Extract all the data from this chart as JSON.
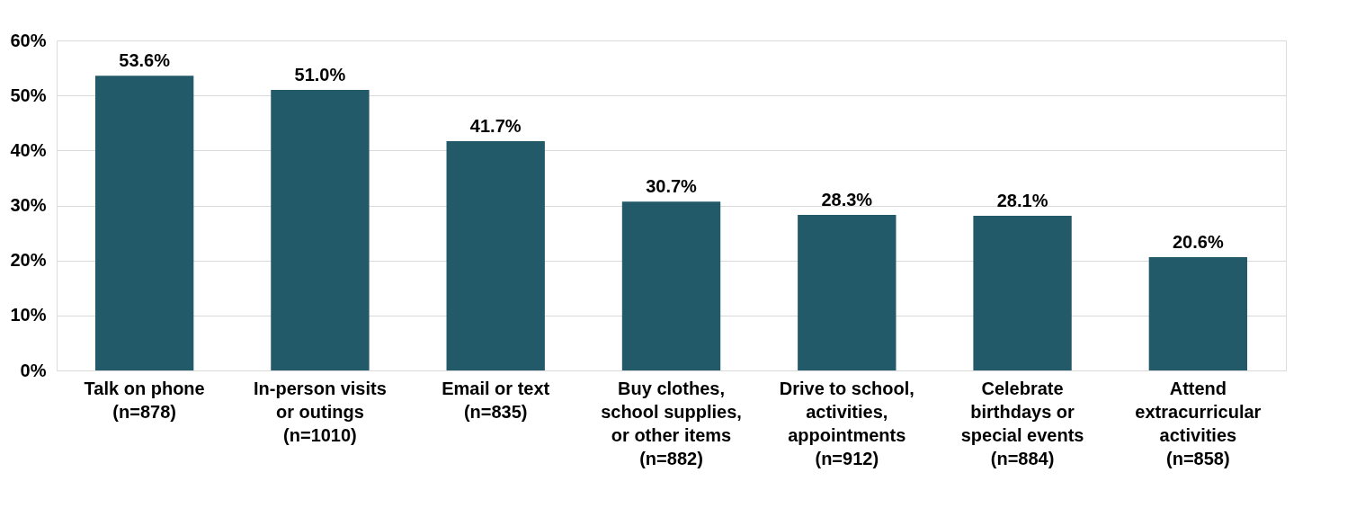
{
  "chart_data": {
    "type": "bar",
    "categories": [
      "Talk on phone\n(n=878)",
      "In-person visits\nor outings\n(n=1010)",
      "Email or text\n(n=835)",
      "Buy clothes,\nschool supplies,\nor other items\n(n=882)",
      "Drive to school,\nactivities,\nappointments\n(n=912)",
      "Celebrate\nbirthdays or\nspecial events\n(n=884)",
      "Attend\nextracurricular\nactivities\n(n=858)"
    ],
    "values": [
      53.6,
      51.0,
      41.7,
      30.7,
      28.3,
      28.1,
      20.6
    ],
    "value_labels": [
      "53.6%",
      "51.0%",
      "41.7%",
      "30.7%",
      "28.3%",
      "28.1%",
      "20.6%"
    ],
    "color": "#235a69",
    "ylim": [
      0,
      60
    ],
    "yticks": [
      {
        "value": 0,
        "label": "0%"
      },
      {
        "value": 10,
        "label": "10%"
      },
      {
        "value": 20,
        "label": "20%"
      },
      {
        "value": 30,
        "label": "30%"
      },
      {
        "value": 40,
        "label": "40%"
      },
      {
        "value": 50,
        "label": "50%"
      },
      {
        "value": 60,
        "label": "60%"
      }
    ],
    "grid": "y"
  }
}
